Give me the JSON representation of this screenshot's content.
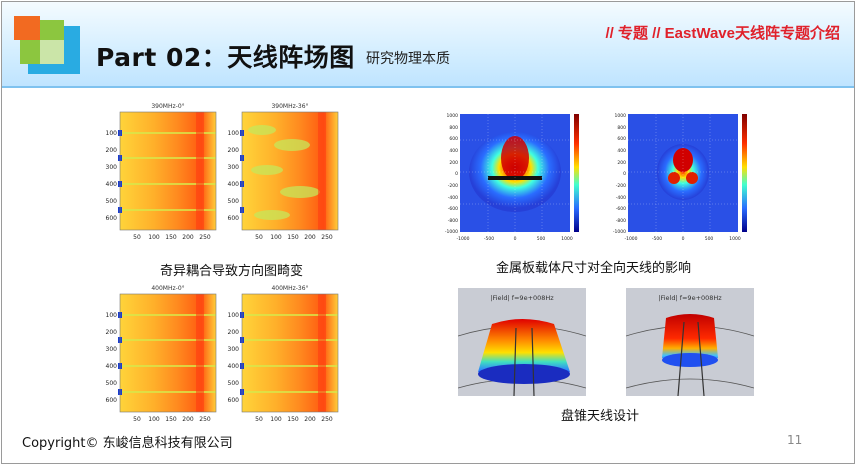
{
  "header": {
    "title": "Part 02：天线阵场图",
    "subtitle": "研究物理本质",
    "topic": "// 专题 // EastWave天线阵专题介绍"
  },
  "plots": [
    {
      "title": "390MHz-0°",
      "yticks": [
        "100",
        "200",
        "300",
        "400",
        "500",
        "600"
      ],
      "xticks": [
        "50",
        "100",
        "150",
        "200",
        "250"
      ]
    },
    {
      "title": "390MHz-36°",
      "yticks": [
        "100",
        "200",
        "300",
        "400",
        "500",
        "600"
      ],
      "xticks": [
        "50",
        "100",
        "150",
        "200",
        "250"
      ]
    },
    {
      "title": "400MHz-0°",
      "yticks": [
        "100",
        "200",
        "300",
        "400",
        "500",
        "600"
      ],
      "xticks": [
        "50",
        "100",
        "150",
        "200",
        "250"
      ]
    },
    {
      "title": "400MHz-36°",
      "yticks": [
        "100",
        "200",
        "300",
        "400",
        "500",
        "600"
      ],
      "xticks": [
        "50",
        "100",
        "150",
        "200",
        "250"
      ]
    }
  ],
  "field_plots": [
    {
      "yticks": [
        "1000",
        "800",
        "600",
        "400",
        "200",
        "0",
        "-200",
        "-400",
        "-600",
        "-800",
        "-1000"
      ],
      "xticks": [
        "-1000",
        "-500",
        "0",
        "500",
        "1000"
      ]
    },
    {
      "yticks": [
        "1000",
        "800",
        "600",
        "400",
        "200",
        "0",
        "-200",
        "-400",
        "-600",
        "-800",
        "-1000"
      ],
      "xticks": [
        "-1000",
        "-500",
        "0",
        "500",
        "1000"
      ]
    }
  ],
  "renders": [
    {
      "label": "|Field| f=9e+008Hz"
    },
    {
      "label": "|Field| f=9e+008Hz"
    }
  ],
  "captions": {
    "odd_coupling": "奇异耦合导致方向图畸变",
    "metal_plate": "金属板载体尺寸对全向天线的影响",
    "disk_cone": "盘锥天线设计"
  },
  "footer": {
    "copyright": "Copyright© 东峻信息科技有限公司",
    "page_number": "11"
  },
  "colors": {
    "topic_red": "#e0212b",
    "header_blue": "#bfe4ff",
    "logo_orange": "#f26a21",
    "logo_green": "#8cc63f",
    "logo_blue": "#29abe2"
  }
}
